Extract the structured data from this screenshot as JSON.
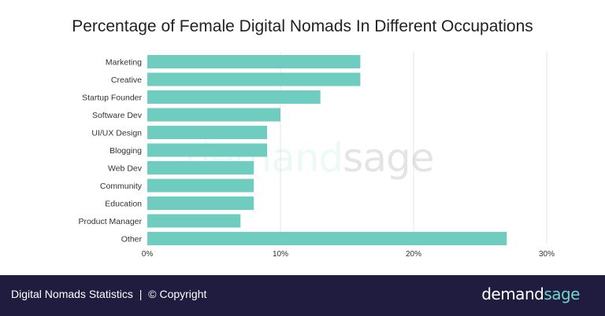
{
  "chart_data": {
    "type": "bar",
    "orientation": "horizontal",
    "title": "Percentage of Female Digital Nomads In Different Occupations",
    "categories": [
      "Marketing",
      "Creative",
      "Startup Founder",
      "Software Dev",
      "UI/UX Design",
      "Blogging",
      "Web Dev",
      "Community",
      "Education",
      "Product Manager",
      "Other"
    ],
    "values": [
      16,
      16,
      13,
      10,
      9,
      9,
      8,
      8,
      8,
      7,
      27
    ],
    "xlim": [
      0,
      30
    ],
    "xticks": [
      0,
      10,
      20,
      30
    ],
    "tick_labels": [
      "0%",
      "10%",
      "20%",
      "30%"
    ],
    "grid": true,
    "bar_color": "#6fcdc0"
  },
  "watermark": {
    "part1": "demand",
    "part2": "sage"
  },
  "footer": {
    "left_text": "Digital Nomads Statistics",
    "separator": "|",
    "copyright": "© Copyright",
    "brand_part1": "demand",
    "brand_part2": "sage",
    "background": "#1f1c3f",
    "accent": "#6fd3c6"
  }
}
